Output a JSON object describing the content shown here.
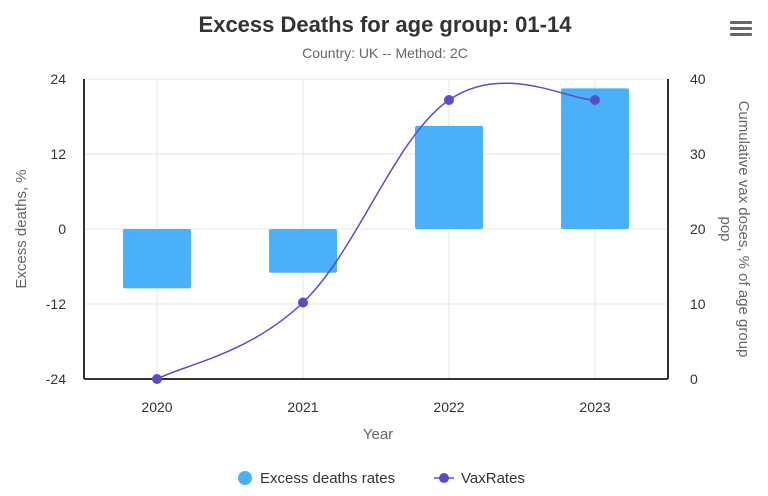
{
  "menu": {
    "icon": "hamburger-menu-icon"
  },
  "chart_data": {
    "type": "bar",
    "title": "Excess Deaths for age group: 01-14",
    "subtitle": "Country: UK -- Method: 2C",
    "xlabel": "Year",
    "ylabel_left": "Excess deaths, %",
    "ylabel_right": "Cumulative vax doses, % of age group pop",
    "categories": [
      "2020",
      "2021",
      "2022",
      "2023"
    ],
    "left_axis": {
      "min": -24,
      "max": 24,
      "ticks": [
        "24",
        "12",
        "0",
        "-12",
        "-24"
      ],
      "tick_values": [
        24,
        12,
        0,
        -12,
        -24
      ]
    },
    "right_axis": {
      "min": 0,
      "max": 40,
      "ticks": [
        "40",
        "30",
        "20",
        "10",
        "0"
      ],
      "tick_values": [
        40,
        30,
        20,
        10,
        0
      ]
    },
    "series": [
      {
        "name": "Excess deaths rates",
        "type": "bar",
        "axis": "left",
        "color": "#4ab0f8",
        "values": [
          -9.5,
          -7,
          16.5,
          22.5
        ]
      },
      {
        "name": "VaxRates",
        "type": "spline",
        "axis": "right",
        "color": "#5a4cc6",
        "values": [
          0,
          10.2,
          37.2,
          37.2
        ]
      }
    ],
    "legend": {
      "position": "bottom"
    }
  }
}
